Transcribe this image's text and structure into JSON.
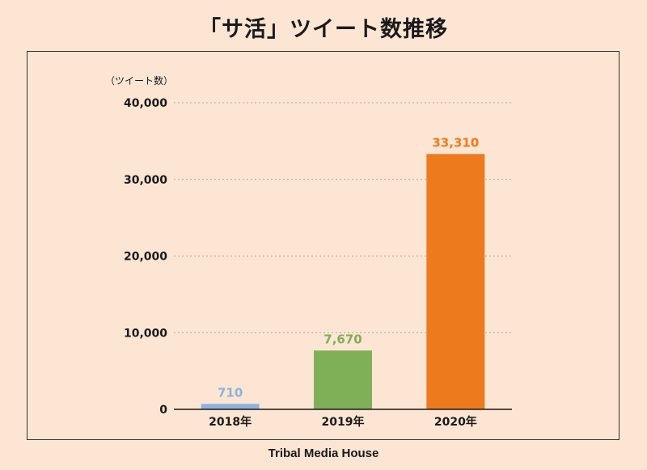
{
  "chart_data": {
    "type": "bar",
    "title": "「サ活」ツイート数推移",
    "ylabel": "（ツイート数）",
    "xlabel": "",
    "categories": [
      "2018年",
      "2019年",
      "2020年"
    ],
    "values": [
      710,
      7670,
      33310
    ],
    "data_labels": [
      "710",
      "7,670",
      "33,310"
    ],
    "colors": [
      "#8db3dc",
      "#7faf56",
      "#ee7a1e"
    ],
    "ylim": [
      0,
      40000
    ],
    "yticks": [
      0,
      10000,
      20000,
      30000,
      40000
    ],
    "ytick_labels": [
      "0",
      "10,000",
      "20,000",
      "30,000",
      "40,000"
    ],
    "grid": true
  },
  "footer": "Tribal Media House"
}
